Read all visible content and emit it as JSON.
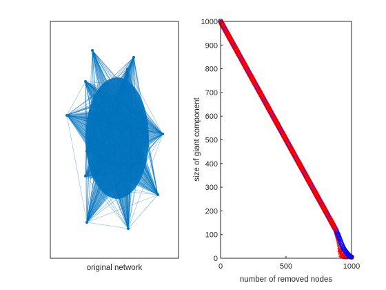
{
  "chart_data": [
    {
      "type": "network",
      "xlabel": "original network",
      "node_color": "#0072bd",
      "edge_color": "#0072bd",
      "hub_nodes": 14,
      "total_nodes_depicted": 1000
    },
    {
      "type": "scatter",
      "xlabel": "number of removed nodes",
      "ylabel": "size of giant component",
      "xlim": [
        0,
        1000
      ],
      "ylim": [
        0,
        1000
      ],
      "xticks": [
        "0",
        "500",
        "1000"
      ],
      "yticks": [
        "0",
        "100",
        "200",
        "300",
        "400",
        "500",
        "600",
        "700",
        "800",
        "900",
        "1000"
      ],
      "grid": false,
      "series": [
        {
          "marker": "circle",
          "color": "#0000ff",
          "points": [
            [
              0,
              1000
            ],
            [
              100,
              900
            ],
            [
              200,
              800
            ],
            [
              300,
              700
            ],
            [
              400,
              600
            ],
            [
              500,
              500
            ],
            [
              600,
              400
            ],
            [
              700,
              300
            ],
            [
              800,
              200
            ],
            [
              880,
              120
            ],
            [
              900,
              95
            ],
            [
              920,
              65
            ],
            [
              940,
              40
            ],
            [
              960,
              25
            ],
            [
              980,
              12
            ],
            [
              1000,
              5
            ]
          ]
        },
        {
          "marker": "x",
          "color": "#ff0000",
          "points": [
            [
              0,
              1000
            ],
            [
              100,
              900
            ],
            [
              200,
              800
            ],
            [
              300,
              700
            ],
            [
              400,
              600
            ],
            [
              500,
              500
            ],
            [
              600,
              400
            ],
            [
              700,
              300
            ],
            [
              800,
              200
            ],
            [
              880,
              120
            ],
            [
              900,
              80
            ],
            [
              910,
              40
            ],
            [
              920,
              15
            ],
            [
              940,
              8
            ],
            [
              960,
              6
            ],
            [
              980,
              5
            ]
          ]
        }
      ]
    }
  ]
}
